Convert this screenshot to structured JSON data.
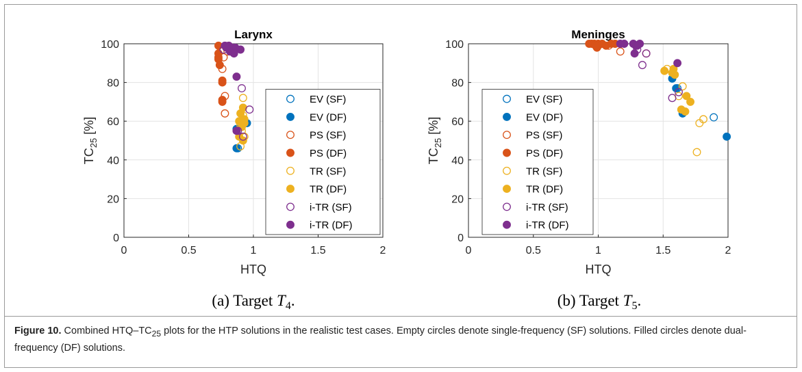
{
  "chart_data": [
    {
      "type": "scatter",
      "title": "Larynx",
      "xlabel": "HTQ",
      "ylabel": {
        "base": "TC",
        "sub": "25",
        "rest": " [%]"
      },
      "subcaption": {
        "prefix": "(a) Target ",
        "var": "T",
        "sub": "4",
        "suffix": "."
      },
      "xlim": [
        0,
        2
      ],
      "xticks": [
        0,
        0.5,
        1,
        1.5,
        2
      ],
      "ylim": [
        0,
        100
      ],
      "yticks": [
        0,
        20,
        40,
        60,
        80,
        100
      ],
      "grid": true,
      "legend": "southeast",
      "series": [
        {
          "name": "EV (SF)",
          "color": "#0072BD",
          "filled": false,
          "x": [
            0.88
          ],
          "values": [
            46
          ]
        },
        {
          "name": "EV (DF)",
          "color": "#0072BD",
          "filled": true,
          "x": [
            0.87,
            0.95,
            0.87
          ],
          "values": [
            46,
            59,
            56
          ]
        },
        {
          "name": "PS (SF)",
          "color": "#D95319",
          "filled": false,
          "x": [
            0.77,
            0.76,
            0.78,
            0.78,
            0.8
          ],
          "values": [
            93,
            87,
            73,
            64,
            96
          ]
        },
        {
          "name": "PS (DF)",
          "color": "#D95319",
          "filled": true,
          "x": [
            0.73,
            0.73,
            0.73,
            0.73,
            0.74,
            0.76,
            0.76,
            0.76,
            0.76
          ],
          "values": [
            99,
            95,
            93,
            92,
            89,
            81,
            80,
            71,
            70
          ]
        },
        {
          "name": "TR (SF)",
          "color": "#EDB120",
          "filled": false,
          "x": [
            0.92,
            0.92,
            0.9,
            0.93,
            0.9,
            0.91
          ],
          "values": [
            72,
            63,
            47,
            52,
            58,
            55
          ]
        },
        {
          "name": "TR (DF)",
          "color": "#EDB120",
          "filled": true,
          "x": [
            0.92,
            0.9,
            0.89,
            0.93,
            0.91,
            0.89,
            0.92,
            0.93
          ],
          "values": [
            67,
            64,
            60,
            59,
            57,
            52,
            50,
            61
          ]
        },
        {
          "name": "i-TR (SF)",
          "color": "#7E2F8E",
          "filled": false,
          "x": [
            0.91,
            0.97,
            0.92,
            0.77,
            0.88
          ],
          "values": [
            77,
            66,
            52,
            97,
            55
          ]
        },
        {
          "name": "i-TR (DF)",
          "color": "#7E2F8E",
          "filled": true,
          "x": [
            0.78,
            0.81,
            0.84,
            0.86,
            0.9,
            0.82,
            0.85,
            0.87,
            0.87,
            0.79
          ],
          "values": [
            99,
            99,
            98,
            98,
            97,
            96,
            95,
            83,
            55,
            98
          ]
        }
      ]
    },
    {
      "type": "scatter",
      "title": "Meninges",
      "xlabel": "HTQ",
      "ylabel": {
        "base": "TC",
        "sub": "25",
        "rest": " [%]"
      },
      "subcaption": {
        "prefix": "(b) Target ",
        "var": "T",
        "sub": "5",
        "suffix": "."
      },
      "xlim": [
        0,
        2
      ],
      "xticks": [
        0,
        0.5,
        1,
        1.5,
        2
      ],
      "ylim": [
        0,
        100
      ],
      "yticks": [
        0,
        20,
        40,
        60,
        80,
        100
      ],
      "grid": true,
      "legend": "southwest",
      "series": [
        {
          "name": "EV (SF)",
          "color": "#0072BD",
          "filled": false,
          "x": [
            1.89,
            1.61
          ],
          "values": [
            62,
            77
          ]
        },
        {
          "name": "EV (DF)",
          "color": "#0072BD",
          "filled": true,
          "x": [
            1.99,
            1.57,
            1.65,
            1.6
          ],
          "values": [
            52,
            82,
            64,
            77
          ]
        },
        {
          "name": "PS (SF)",
          "color": "#D95319",
          "filled": false,
          "x": [
            1.17,
            1.08,
            1.37,
            1.0
          ],
          "values": [
            96,
            99,
            95,
            99
          ]
        },
        {
          "name": "PS (DF)",
          "color": "#D95319",
          "filled": true,
          "x": [
            0.93,
            0.95,
            0.97,
            0.99,
            1.0,
            1.03,
            1.06,
            1.1,
            1.13,
            0.98
          ],
          "values": [
            100,
            100,
            100,
            98,
            100,
            100,
            99,
            100,
            100,
            99
          ]
        },
        {
          "name": "TR (SF)",
          "color": "#EDB120",
          "filled": false,
          "x": [
            1.76,
            1.78,
            1.81,
            1.65,
            1.53,
            1.62
          ],
          "values": [
            44,
            59,
            61,
            78,
            87,
            73
          ]
        },
        {
          "name": "TR (DF)",
          "color": "#EDB120",
          "filled": true,
          "x": [
            1.51,
            1.58,
            1.59,
            1.64,
            1.67,
            1.71,
            1.68,
            1.57
          ],
          "values": [
            86,
            87,
            84,
            66,
            65,
            70,
            73,
            85
          ]
        },
        {
          "name": "i-TR (SF)",
          "color": "#7E2F8E",
          "filled": false,
          "x": [
            1.34,
            1.3,
            1.57,
            1.62,
            1.37
          ],
          "values": [
            89,
            97,
            72,
            75,
            95
          ]
        },
        {
          "name": "i-TR (DF)",
          "color": "#7E2F8E",
          "filled": true,
          "x": [
            1.17,
            1.2,
            1.27,
            1.3,
            1.28,
            1.32,
            1.61,
            1.29
          ],
          "values": [
            100,
            100,
            100,
            99,
            95,
            100,
            90,
            99
          ]
        }
      ]
    }
  ],
  "caption": {
    "label": "Figure 10.",
    "text1": " Combined HTQ–TC",
    "sub": "25",
    "text2": " plots for the HTP solutions in the realistic test cases. Empty circles denote single-frequency (SF) solutions. Filled circles denote dual-frequency (DF) solutions."
  }
}
